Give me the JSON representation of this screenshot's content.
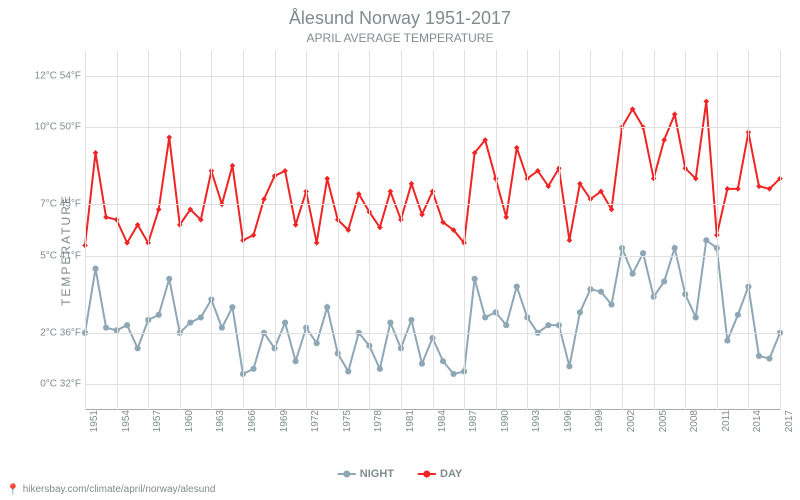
{
  "title": "Ålesund Norway 1951-2017",
  "subtitle": "APRIL AVERAGE TEMPERATURE",
  "y_label": "TEMPERATURE",
  "footer_url": "hikersbay.com/climate/april/norway/alesund",
  "chart": {
    "type": "line",
    "background_color": "#ffffff",
    "grid_color": "#e0e0e0",
    "text_color": "#7f8c8d",
    "title_fontsize": 18,
    "subtitle_fontsize": 12,
    "label_fontsize": 12,
    "tick_fontsize": 10,
    "line_width": 2,
    "marker_size": 4,
    "ylim_c": [
      -1,
      13
    ],
    "y_ticks": [
      {
        "c": 0,
        "f": 32
      },
      {
        "c": 2,
        "f": 36
      },
      {
        "c": 5,
        "f": 41
      },
      {
        "c": 7,
        "f": 45
      },
      {
        "c": 10,
        "f": 50
      },
      {
        "c": 12,
        "f": 54
      }
    ],
    "x_ticks": [
      1951,
      1954,
      1957,
      1960,
      1963,
      1966,
      1969,
      1972,
      1975,
      1978,
      1981,
      1984,
      1987,
      1990,
      1993,
      1996,
      1999,
      2002,
      2005,
      2008,
      2011,
      2014,
      2017
    ],
    "years_start": 1951,
    "years_end": 2017,
    "series": [
      {
        "name": "NIGHT",
        "color": "#8ea7b5",
        "marker": "circle",
        "values": [
          2.0,
          4.5,
          2.2,
          2.1,
          2.3,
          1.4,
          2.5,
          2.7,
          4.1,
          2.0,
          2.4,
          2.6,
          3.3,
          2.2,
          3.0,
          0.4,
          0.6,
          2.0,
          1.4,
          2.4,
          0.9,
          2.2,
          1.6,
          3.0,
          1.2,
          0.5,
          2.0,
          1.5,
          0.6,
          2.4,
          1.4,
          2.5,
          0.8,
          1.8,
          0.9,
          0.4,
          0.5,
          4.1,
          2.6,
          2.8,
          2.3,
          3.8,
          2.6,
          2.0,
          2.3,
          2.3,
          0.7,
          2.8,
          3.7,
          3.6,
          3.1,
          5.3,
          4.3,
          5.1,
          3.4,
          4.0,
          5.3,
          3.5,
          2.6,
          5.6,
          5.3,
          1.7,
          2.7,
          3.8,
          1.1,
          1.0,
          2.0
        ]
      },
      {
        "name": "DAY",
        "color": "#ee2524",
        "marker": "diamond",
        "values": [
          5.4,
          9.0,
          6.5,
          6.4,
          5.5,
          6.2,
          5.5,
          6.8,
          9.6,
          6.2,
          6.8,
          6.4,
          8.3,
          7.0,
          8.5,
          5.6,
          5.8,
          7.2,
          8.1,
          8.3,
          6.2,
          7.5,
          5.5,
          8.0,
          6.4,
          6.0,
          7.4,
          6.7,
          6.1,
          7.5,
          6.4,
          7.8,
          6.6,
          7.5,
          6.3,
          6.0,
          5.5,
          9.0,
          9.5,
          8.0,
          6.5,
          9.2,
          8.0,
          8.3,
          7.7,
          8.4,
          5.6,
          7.8,
          7.2,
          7.5,
          6.8,
          10.0,
          10.7,
          10.0,
          8.0,
          9.5,
          10.5,
          8.4,
          8.0,
          11.0,
          5.8,
          7.6,
          7.6,
          9.8,
          7.7,
          7.6,
          8.0
        ]
      }
    ]
  }
}
